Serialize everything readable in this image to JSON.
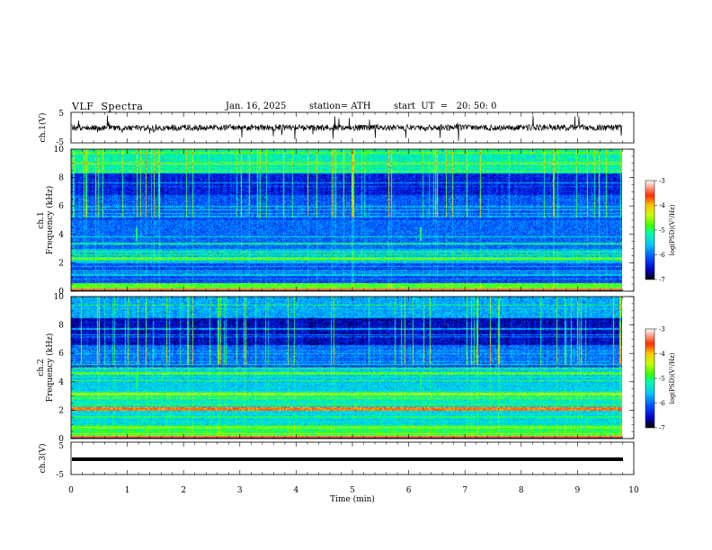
{
  "header": {
    "title": "VLF  Spectra",
    "date": "Jan. 16, 2025",
    "station": "station= ATH",
    "start_ut": "start  UT  =   20: 50: 0"
  },
  "chart_data": [
    {
      "type": "line",
      "panel": "ch1-waveform",
      "ylabel": "ch.1(V)",
      "ylim": [
        -5,
        5
      ],
      "yticks": [
        "5",
        "-5"
      ],
      "x_range": [
        0,
        10
      ],
      "xlabel": ""
    },
    {
      "type": "heatmap",
      "panel": "ch1-spectrogram",
      "ylabel_line1": "ch.1",
      "ylabel_line2": "Frequency  (kHz)",
      "ylim": [
        0,
        10
      ],
      "yticks": [
        "0",
        "2",
        "4",
        "6",
        "8",
        "10"
      ],
      "x_range": [
        0,
        9.8
      ],
      "colorbar": {
        "label": "log(PSD)(V²/Hz)",
        "range": [
          -7,
          -3
        ],
        "ticks": [
          "-3",
          "-4",
          "-5",
          "-6",
          "-7"
        ]
      }
    },
    {
      "type": "heatmap",
      "panel": "ch2-spectrogram",
      "ylabel_line1": "ch.2",
      "ylabel_line2": "Frequency  (kHz)",
      "ylim": [
        0,
        10
      ],
      "yticks": [
        "0",
        "2",
        "4",
        "6",
        "8",
        "10"
      ],
      "x_range": [
        0,
        9.8
      ],
      "colorbar": {
        "label": "log(PSD)(V²/Hz)",
        "range": [
          -7,
          -3
        ],
        "ticks": [
          "-3",
          "-4",
          "-5",
          "-6",
          "-7"
        ]
      }
    },
    {
      "type": "line",
      "panel": "ch3-waveform",
      "ylabel": "ch.3(V)",
      "ylim": [
        -5,
        5
      ],
      "yticks": [
        "5",
        "-5"
      ],
      "xlabel": "Time  (min)",
      "xlim": [
        0,
        10
      ],
      "xticks": [
        "0",
        "1",
        "2",
        "3",
        "4",
        "5",
        "6",
        "7",
        "8",
        "9",
        "10"
      ]
    }
  ],
  "colors": {
    "colormap": [
      "#000000",
      "#0000c8",
      "#0050ff",
      "#00c8ff",
      "#00ffa0",
      "#40ff00",
      "#c8ff00",
      "#ffc800",
      "#ff3000",
      "#ffffff"
    ]
  }
}
